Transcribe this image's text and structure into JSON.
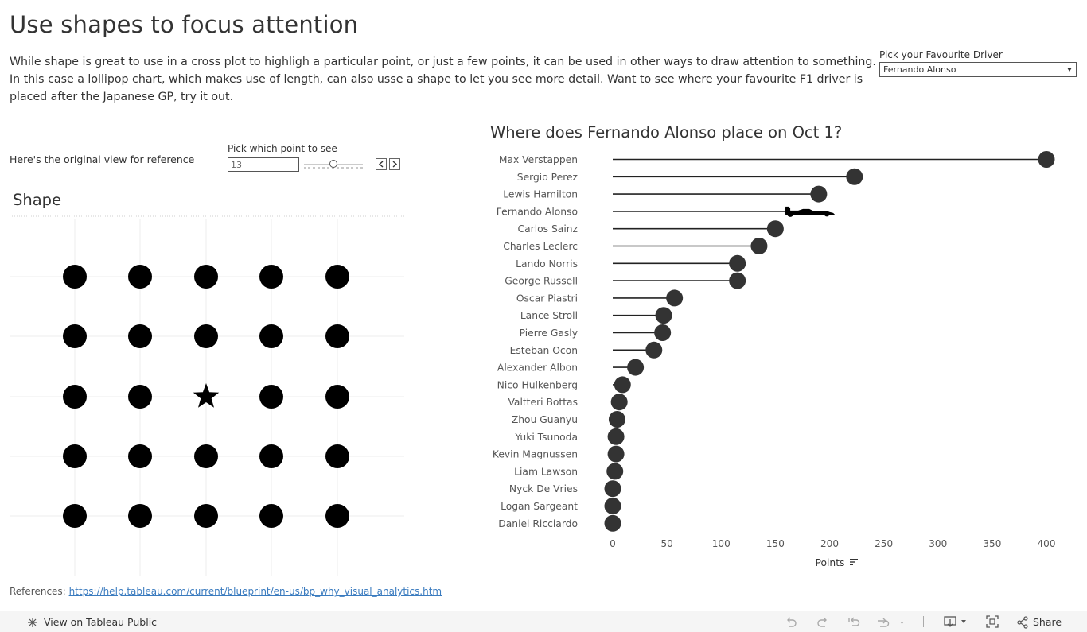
{
  "header": {
    "title": "Use shapes to focus attention",
    "description_line1": "While shape is great to use in a cross plot to highligh a particular point, or just a few points, it can be used in other ways to draw attention to something.",
    "description_line2": "In this case a lollipop chart, which makes use of length, can also usse a shape to let you see more detail.  Want to see where your favourite F1 driver is",
    "description_line3": "placed after the Japanese GP, try it out."
  },
  "driver_picker": {
    "label": "Pick your Favourite Driver",
    "selected": "Fernando Alonso"
  },
  "reference_view": {
    "label": "Here's the original view for reference"
  },
  "point_picker": {
    "label": "Pick which point to see",
    "value": "13",
    "slider_fraction": 0.5,
    "prev_icon": "chevron-left-icon",
    "next_icon": "chevron-right-icon"
  },
  "shape_view": {
    "title": "Shape",
    "rows": 5,
    "cols": 5,
    "highlight_point": 13,
    "highlight_icon": "star-icon",
    "dot_color": "#000000"
  },
  "chart": {
    "title": "Where does  Fernando Alonso place on Oct 1?",
    "highlight_icon": "f1-car-icon",
    "mark_color": "#333333",
    "x_label": "Points",
    "sort_icon": "sort-descending-icon"
  },
  "chart_data": {
    "type": "lollipop",
    "xlabel": "Points",
    "xlim": [
      0,
      400
    ],
    "x_ticks": [
      0,
      50,
      100,
      150,
      200,
      250,
      300,
      350,
      400
    ],
    "highlighted": "Fernando Alonso",
    "categories": [
      "Max Verstappen",
      "Sergio Perez",
      "Lewis Hamilton",
      "Fernando Alonso",
      "Carlos Sainz",
      "Charles Leclerc",
      "Lando Norris",
      "George Russell",
      "Oscar Piastri",
      "Lance Stroll",
      "Pierre Gasly",
      "Esteban Ocon",
      "Alexander Albon",
      "Nico Hulkenberg",
      "Valtteri Bottas",
      "Zhou Guanyu",
      "Yuki Tsunoda",
      "Kevin Magnussen",
      "Liam Lawson",
      "Nyck De Vries",
      "Logan Sargeant",
      "Daniel Ricciardo"
    ],
    "values": [
      400,
      223,
      190,
      174,
      150,
      135,
      115,
      115,
      57,
      47,
      46,
      38,
      21,
      9,
      6,
      4,
      3,
      3,
      2,
      0,
      0,
      0
    ]
  },
  "references": {
    "label": "References:",
    "link": "https://help.tableau.com/current/blueprint/en-us/bp_why_visual_analytics.htm"
  },
  "footer": {
    "view_label": "View on Tableau Public",
    "share_label": "Share",
    "icons": [
      "tableau-public-icon",
      "undo-icon",
      "redo-icon",
      "revert-icon",
      "refresh-icon",
      "download-icon",
      "fullscreen-icon",
      "share-icon"
    ]
  }
}
